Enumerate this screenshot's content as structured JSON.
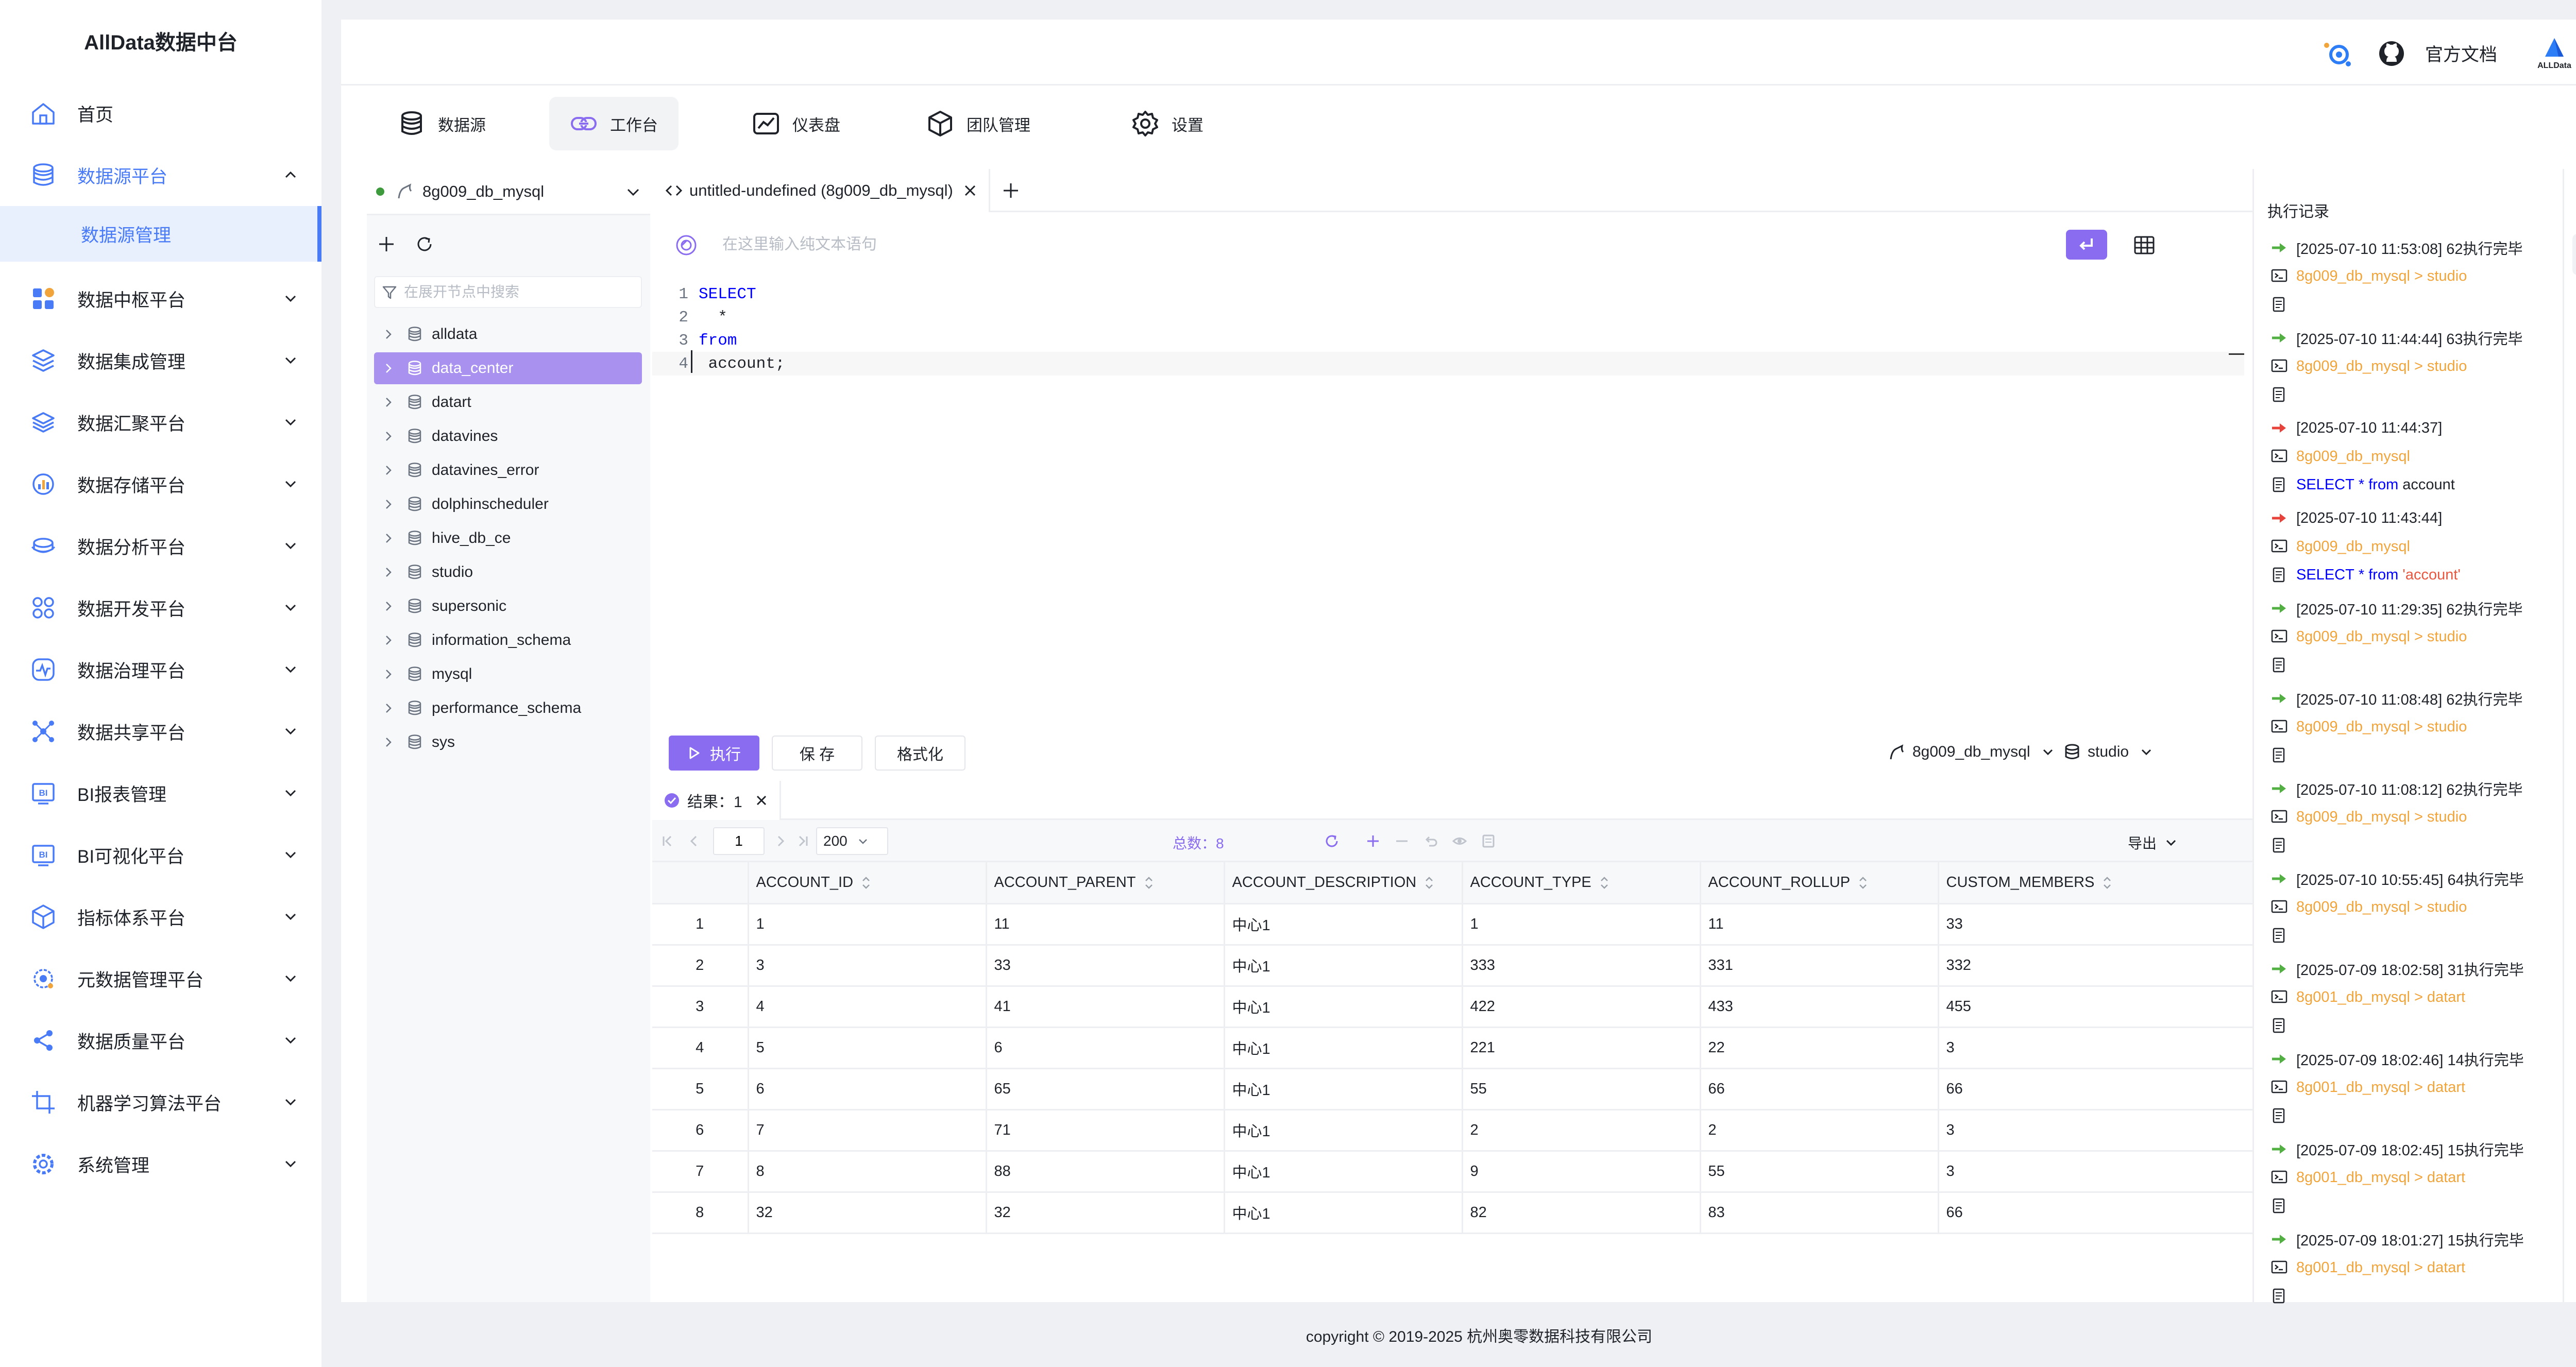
{
  "app": {
    "title": "AllData数据中台"
  },
  "sidebar": {
    "items": [
      {
        "label": "首页",
        "icon": "home-icon"
      },
      {
        "label": "数据源平台",
        "icon": "database-icon",
        "expanded": true
      },
      {
        "label": "数据中枢平台",
        "icon": "apps-icon"
      },
      {
        "label": "数据集成管理",
        "icon": "layers-icon"
      },
      {
        "label": "数据汇聚平台",
        "icon": "stack-icon"
      },
      {
        "label": "数据存储平台",
        "icon": "chart-pie-icon"
      },
      {
        "label": "数据分析平台",
        "icon": "cloud-db-icon"
      },
      {
        "label": "数据开发平台",
        "icon": "grid-circles-icon"
      },
      {
        "label": "数据治理平台",
        "icon": "pulse-icon"
      },
      {
        "label": "数据共享平台",
        "icon": "network-icon"
      },
      {
        "label": "BI报表管理",
        "icon": "bi-report-icon"
      },
      {
        "label": "BI可视化平台",
        "icon": "bi-visual-icon"
      },
      {
        "label": "指标体系平台",
        "icon": "cube-icon"
      },
      {
        "label": "元数据管理平台",
        "icon": "gear-icon"
      },
      {
        "label": "数据质量平台",
        "icon": "share-nodes-icon"
      },
      {
        "label": "机器学习算法平台",
        "icon": "crop-icon"
      },
      {
        "label": "系统管理",
        "icon": "settings-icon"
      }
    ],
    "sub_item": "数据源管理",
    "accent_color": "#4a7bf7"
  },
  "topbar": {
    "docs_label": "官方文档",
    "brand_caret": "▾"
  },
  "modules": [
    {
      "label": "数据源",
      "icon": "database-icon"
    },
    {
      "label": "工作台",
      "icon": "link-icon",
      "active": true
    },
    {
      "label": "仪表盘",
      "icon": "chart-icon"
    },
    {
      "label": "团队管理",
      "icon": "box-icon"
    },
    {
      "label": "设置",
      "icon": "gear-icon"
    }
  ],
  "tree": {
    "connection": "8g009_db_mysql",
    "search_placeholder": "在展开节点中搜索",
    "databases": [
      "alldata",
      "data_center",
      "datart",
      "datavines",
      "datavines_error",
      "dolphinscheduler",
      "hive_db_ce",
      "studio",
      "supersonic",
      "information_schema",
      "mysql",
      "performance_schema",
      "sys"
    ],
    "selected": "data_center"
  },
  "editor": {
    "tab_title": "untitled-undefined (8g009_db_mysql)",
    "nl_placeholder": "在这里输入纯文本语句",
    "lines": [
      {
        "num": "1",
        "kw": "SELECT",
        "rest": ""
      },
      {
        "num": "2",
        "kw": "",
        "rest": "  *"
      },
      {
        "num": "3",
        "kw": "from",
        "rest": ""
      },
      {
        "num": "4",
        "kw": "",
        "rest": " account;"
      }
    ]
  },
  "actions": {
    "run": "执行",
    "save": "保 存",
    "format": "格式化",
    "connection": "8g009_db_mysql",
    "schema": "studio",
    "accent_color": "#8a6cf0"
  },
  "result": {
    "tab_label": "结果：1",
    "page": "1",
    "page_size": "200",
    "total_label": "总数：8",
    "export_label": "导出",
    "columns": [
      "",
      "ACCOUNT_ID",
      "ACCOUNT_PARENT",
      "ACCOUNT_DESCRIPTION",
      "ACCOUNT_TYPE",
      "ACCOUNT_ROLLUP",
      "CUSTOM_MEMBERS"
    ],
    "rows": [
      [
        "1",
        "1",
        "11",
        "中心1",
        "1",
        "11",
        "33"
      ],
      [
        "2",
        "3",
        "33",
        "中心1",
        "333",
        "331",
        "332"
      ],
      [
        "3",
        "4",
        "41",
        "中心1",
        "422",
        "433",
        "455"
      ],
      [
        "4",
        "5",
        "6",
        "中心1",
        "221",
        "22",
        "3"
      ],
      [
        "5",
        "6",
        "65",
        "中心1",
        "55",
        "66",
        "66"
      ],
      [
        "6",
        "7",
        "71",
        "中心1",
        "2",
        "2",
        "3"
      ],
      [
        "7",
        "8",
        "88",
        "中心1",
        "9",
        "55",
        "3"
      ],
      [
        "8",
        "32",
        "32",
        "中心1",
        "82",
        "83",
        "66"
      ]
    ]
  },
  "history": {
    "title": "执行记录",
    "entries": [
      {
        "status": "success",
        "ts": "[2025-07-10 11:53:08] 62执行完毕",
        "path": "8g009_db_mysql > studio"
      },
      {
        "status": "success",
        "ts": "[2025-07-10 11:44:44] 63执行完毕",
        "path": "8g009_db_mysql > studio"
      },
      {
        "status": "error",
        "ts": "[2025-07-10 11:44:37]",
        "path": "8g009_db_mysql",
        "sql_kw": "SELECT",
        "sql_mid": " * ",
        "sql_kw2": "from",
        "sql_tail": " account",
        "tail_color": "#1f2329"
      },
      {
        "status": "error",
        "ts": "[2025-07-10 11:43:44]",
        "path": "8g009_db_mysql",
        "sql_kw": "SELECT",
        "sql_mid": " * ",
        "sql_kw2": "from",
        "sql_tail": " 'account'",
        "tail_color": "#e8573f"
      },
      {
        "status": "success",
        "ts": "[2025-07-10 11:29:35] 62执行完毕",
        "path": "8g009_db_mysql > studio"
      },
      {
        "status": "success",
        "ts": "[2025-07-10 11:08:48] 62执行完毕",
        "path": "8g009_db_mysql > studio"
      },
      {
        "status": "success",
        "ts": "[2025-07-10 11:08:12] 62执行完毕",
        "path": "8g009_db_mysql > studio"
      },
      {
        "status": "success",
        "ts": "[2025-07-10 10:55:45] 64执行完毕",
        "path": "8g009_db_mysql > studio"
      },
      {
        "status": "success",
        "ts": "[2025-07-09 18:02:58] 31执行完毕",
        "path": "8g001_db_mysql > datart"
      },
      {
        "status": "success",
        "ts": "[2025-07-09 18:02:46] 14执行完毕",
        "path": "8g001_db_mysql > datart"
      },
      {
        "status": "success",
        "ts": "[2025-07-09 18:02:45] 15执行完毕",
        "path": "8g001_db_mysql > datart"
      },
      {
        "status": "success",
        "ts": "[2025-07-09 18:01:27] 15执行完毕",
        "path": "8g001_db_mysql > datart"
      }
    ],
    "success_color": "#52b043",
    "error_color": "#e8433a"
  },
  "footer": {
    "text": "copyright © 2019-2025 杭州奥零数据科技有限公司"
  }
}
